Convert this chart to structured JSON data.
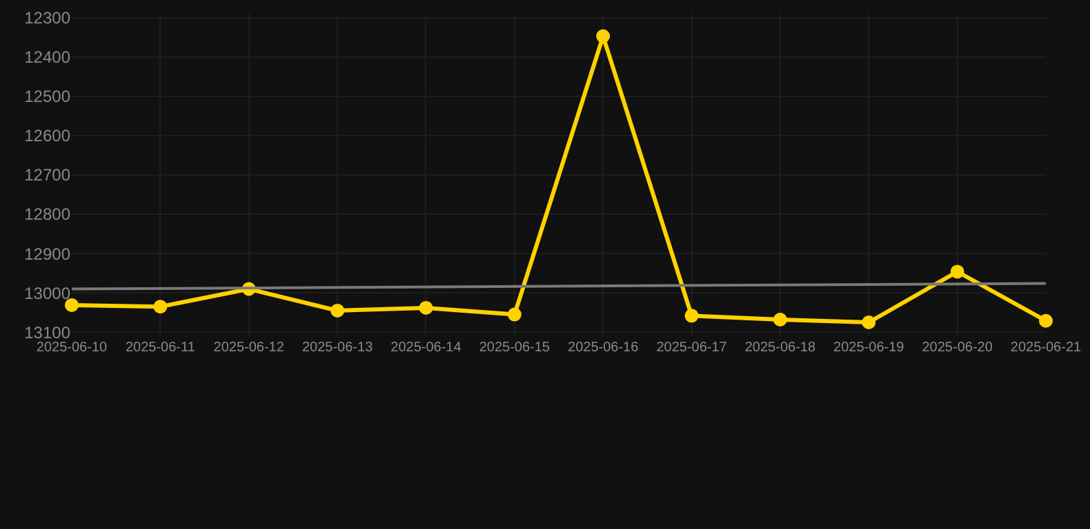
{
  "chart_data": {
    "type": "line",
    "x": [
      "2025-06-10",
      "2025-06-11",
      "2025-06-12",
      "2025-06-13",
      "2025-06-14",
      "2025-06-15",
      "2025-06-16",
      "2025-06-17",
      "2025-06-18",
      "2025-06-19",
      "2025-06-20",
      "2025-06-21"
    ],
    "series": [
      {
        "color": "#ffd200",
        "marker": "circle",
        "values": [
          13031,
          13035,
          12990,
          13045,
          13038,
          13055,
          12347,
          13058,
          13068,
          13075,
          12946,
          13071
        ]
      },
      {
        "type": "line",
        "color": "#7a7a7a",
        "marker": "none",
        "x": [
          "2025-06-10",
          "2025-06-21"
        ],
        "values": [
          12990,
          12976
        ]
      }
    ],
    "xlim": [
      "2025-06-10",
      "2025-06-21"
    ],
    "xticks": [
      "2025-06-10",
      "2025-06-11",
      "2025-06-12",
      "2025-06-13",
      "2025-06-14",
      "2025-06-15",
      "2025-06-16",
      "2025-06-17",
      "2025-06-18",
      "2025-06-19",
      "2025-06-20",
      "2025-06-21"
    ],
    "ylim": [
      13110,
      12290
    ],
    "yticks": [
      12300,
      12400,
      12500,
      12600,
      12700,
      12800,
      12900,
      13000,
      13100
    ],
    "grid": true,
    "line_style": "solid"
  }
}
